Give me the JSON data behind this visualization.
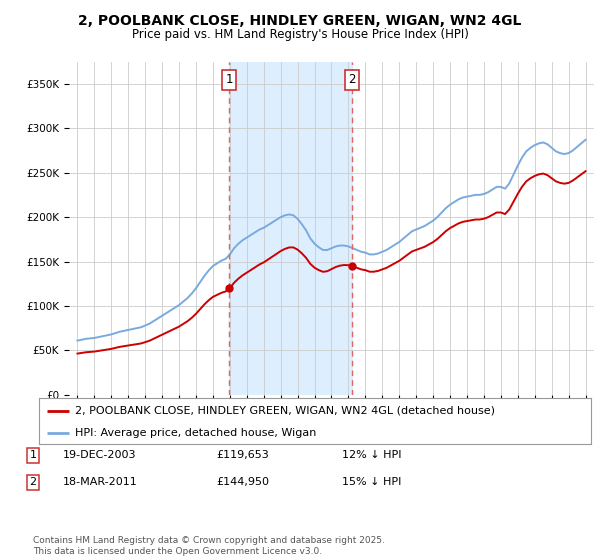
{
  "title": "2, POOLBANK CLOSE, HINDLEY GREEN, WIGAN, WN2 4GL",
  "subtitle": "Price paid vs. HM Land Registry's House Price Index (HPI)",
  "ylim": [
    0,
    375000
  ],
  "yticks": [
    0,
    50000,
    100000,
    150000,
    200000,
    250000,
    300000,
    350000
  ],
  "ytick_labels": [
    "£0",
    "£50K",
    "£100K",
    "£150K",
    "£200K",
    "£250K",
    "£300K",
    "£350K"
  ],
  "hpi_color": "#7aaadd",
  "price_color": "#cc0000",
  "sale1_date_num": 2003.97,
  "sale2_date_num": 2011.21,
  "sale1_price": 119653,
  "sale2_price": 144950,
  "sale1_label": "1",
  "sale2_label": "2",
  "sale1_date_str": "19-DEC-2003",
  "sale2_date_str": "18-MAR-2011",
  "sale1_pct": "12% ↓ HPI",
  "sale2_pct": "15% ↓ HPI",
  "legend1": "2, POOLBANK CLOSE, HINDLEY GREEN, WIGAN, WN2 4GL (detached house)",
  "legend2": "HPI: Average price, detached house, Wigan",
  "footnote": "Contains HM Land Registry data © Crown copyright and database right 2025.\nThis data is licensed under the Open Government Licence v3.0.",
  "bg_highlight_color": "#ddeeff",
  "vline_color": "#dd6666",
  "title_fontsize": 10,
  "subtitle_fontsize": 8.5,
  "tick_fontsize": 7.5,
  "legend_fontsize": 8,
  "annotation_fontsize": 8,
  "footnote_fontsize": 6.5
}
